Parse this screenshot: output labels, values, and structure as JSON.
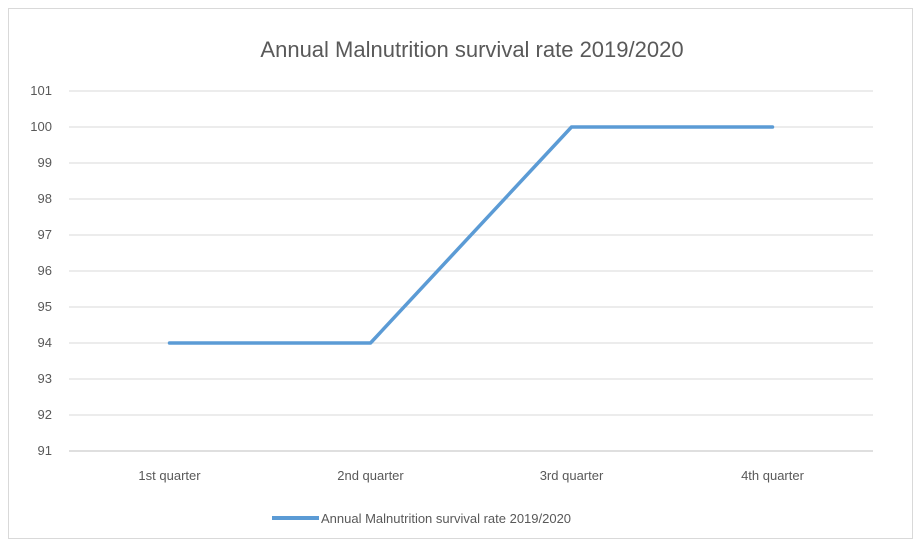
{
  "chart_data": {
    "type": "line",
    "title": "Annual Malnutrition survival rate 2019/2020",
    "categories": [
      "1st quarter",
      "2nd quarter",
      "3rd quarter",
      "4th quarter"
    ],
    "series": [
      {
        "name": "Annual Malnutrition survival rate 2019/2020",
        "values": [
          94,
          94,
          100,
          100
        ],
        "color": "#5b9bd5"
      }
    ],
    "xlabel": "",
    "ylabel": "",
    "ylim": [
      91,
      101
    ],
    "yticks": [
      91,
      92,
      93,
      94,
      95,
      96,
      97,
      98,
      99,
      100,
      101
    ],
    "grid": true,
    "legend_position": "bottom"
  }
}
